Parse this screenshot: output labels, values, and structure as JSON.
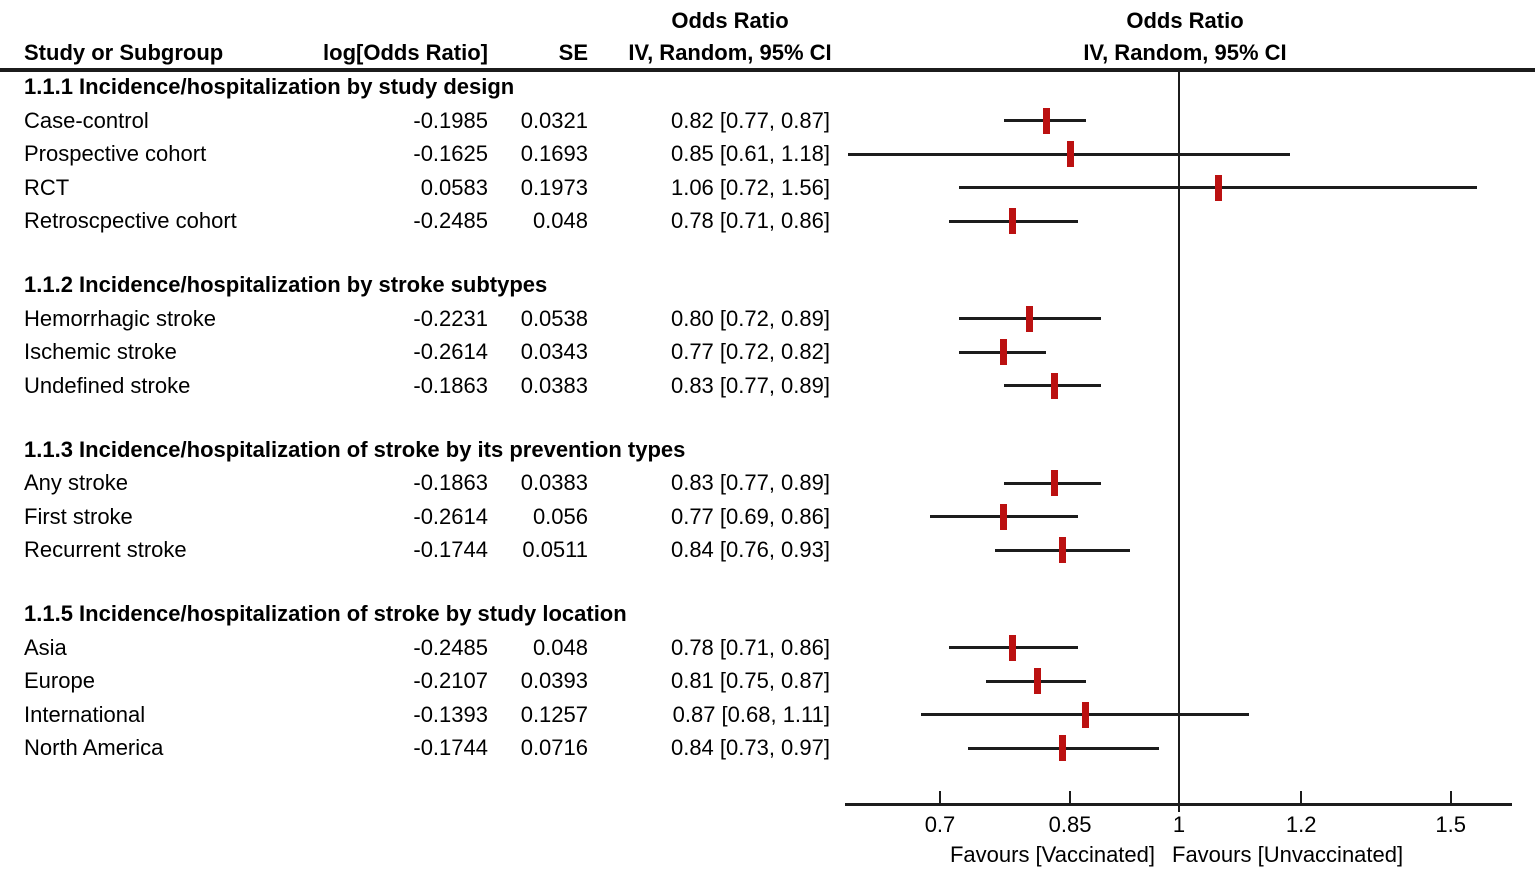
{
  "header": {
    "col_study": "Study or Subgroup",
    "col_logor": "log[Odds Ratio]",
    "col_se": "SE",
    "or_title_text_col": "Odds Ratio",
    "ci_sub_text_col": "IV, Random, 95% CI",
    "or_title_plot_col": "Odds Ratio",
    "ci_sub_plot_col": "IV, Random, 95% CI"
  },
  "chart_data": {
    "type": "forest",
    "scale": "log",
    "effect_measure": "Odds Ratio",
    "model": "IV, Random, 95% CI",
    "marker_color": "#bb1111",
    "line_color": "#1c1c1c",
    "axis": {
      "ticks": [
        0.7,
        0.85,
        1,
        1.2,
        1.5
      ],
      "tick_labels": [
        "0.7",
        "0.85",
        "1",
        "1.2",
        "1.5"
      ],
      "range": [
        0.6,
        1.6
      ],
      "ref_line": 1
    },
    "footer": {
      "left": "Favours [Vaccinated]",
      "right": "Favours [Unvaccinated]"
    },
    "sections": [
      {
        "title": "1.1.1 Incidence/hospitalization by study design",
        "rows": [
          {
            "label": "Case-control",
            "log_or": "-0.1985",
            "se": "0.0321",
            "ci_text": "0.82 [0.77, 0.87]",
            "or": 0.82,
            "lo": 0.77,
            "hi": 0.87
          },
          {
            "label": "Prospective cohort",
            "log_or": "-0.1625",
            "se": "0.1693",
            "ci_text": "0.85 [0.61, 1.18]",
            "or": 0.85,
            "lo": 0.61,
            "hi": 1.18
          },
          {
            "label": "RCT",
            "log_or": "0.0583",
            "se": "0.1973",
            "ci_text": "1.06 [0.72, 1.56]",
            "or": 1.06,
            "lo": 0.72,
            "hi": 1.56
          },
          {
            "label": "Retroscpective cohort",
            "log_or": "-0.2485",
            "se": "0.048",
            "ci_text": "0.78 [0.71, 0.86]",
            "or": 0.78,
            "lo": 0.71,
            "hi": 0.86
          }
        ]
      },
      {
        "title": "1.1.2 Incidence/hospitalization by stroke subtypes",
        "rows": [
          {
            "label": "Hemorrhagic stroke",
            "log_or": "-0.2231",
            "se": "0.0538",
            "ci_text": "0.80 [0.72, 0.89]",
            "or": 0.8,
            "lo": 0.72,
            "hi": 0.89
          },
          {
            "label": "Ischemic stroke",
            "log_or": "-0.2614",
            "se": "0.0343",
            "ci_text": "0.77 [0.72, 0.82]",
            "or": 0.77,
            "lo": 0.72,
            "hi": 0.82
          },
          {
            "label": "Undefined stroke",
            "log_or": "-0.1863",
            "se": "0.0383",
            "ci_text": "0.83 [0.77, 0.89]",
            "or": 0.83,
            "lo": 0.77,
            "hi": 0.89
          }
        ]
      },
      {
        "title": "1.1.3 Incidence/hospitalization of stroke by its prevention types",
        "rows": [
          {
            "label": "Any stroke",
            "log_or": "-0.1863",
            "se": "0.0383",
            "ci_text": "0.83 [0.77, 0.89]",
            "or": 0.83,
            "lo": 0.77,
            "hi": 0.89
          },
          {
            "label": "First stroke",
            "log_or": "-0.2614",
            "se": "0.056",
            "ci_text": "0.77 [0.69, 0.86]",
            "or": 0.77,
            "lo": 0.69,
            "hi": 0.86
          },
          {
            "label": "Recurrent stroke",
            "log_or": "-0.1744",
            "se": "0.0511",
            "ci_text": "0.84 [0.76, 0.93]",
            "or": 0.84,
            "lo": 0.76,
            "hi": 0.93
          }
        ]
      },
      {
        "title": "1.1.5 Incidence/hospitalization of stroke by study location",
        "rows": [
          {
            "label": "Asia",
            "log_or": "-0.2485",
            "se": "0.048",
            "ci_text": "0.78 [0.71, 0.86]",
            "or": 0.78,
            "lo": 0.71,
            "hi": 0.86
          },
          {
            "label": "Europe",
            "log_or": "-0.2107",
            "se": "0.0393",
            "ci_text": "0.81 [0.75, 0.87]",
            "or": 0.81,
            "lo": 0.75,
            "hi": 0.87
          },
          {
            "label": "International",
            "log_or": "-0.1393",
            "se": "0.1257",
            "ci_text": "0.87 [0.68, 1.11]",
            "or": 0.87,
            "lo": 0.68,
            "hi": 1.11
          },
          {
            "label": "North America",
            "log_or": "-0.1744",
            "se": "0.0716",
            "ci_text": "0.84 [0.73, 0.97]",
            "or": 0.84,
            "lo": 0.73,
            "hi": 0.97
          }
        ]
      }
    ]
  }
}
